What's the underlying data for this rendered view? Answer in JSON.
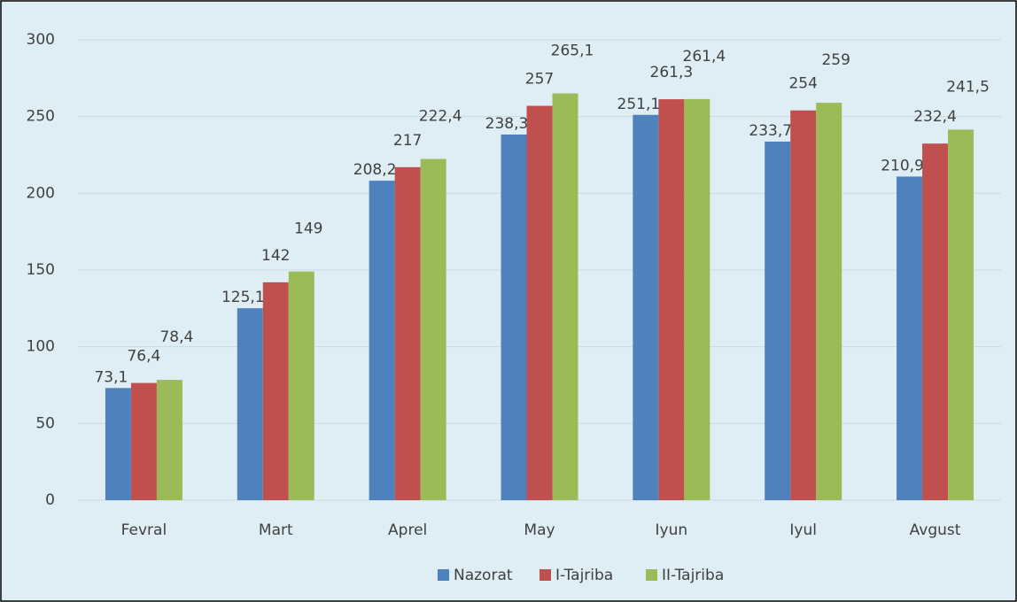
{
  "chart_data": {
    "type": "bar",
    "categories": [
      "Fevral",
      "Mart",
      "Aprel",
      "May",
      "Iyun",
      "Iyul",
      "Avgust"
    ],
    "series": [
      {
        "name": "Nazorat",
        "color": "#4f81bd",
        "values": [
          73.1,
          125.1,
          208.2,
          238.3,
          251.1,
          233.7,
          210.9
        ],
        "value_labels": [
          "73,1",
          "125,1",
          "208,2",
          "238,3",
          "251,1",
          "233,7",
          "210,9"
        ]
      },
      {
        "name": "I-Tajriba",
        "color": "#c0504d",
        "values": [
          76.4,
          142,
          217,
          257,
          261.3,
          254,
          232.4
        ],
        "value_labels": [
          "76,4",
          "142",
          "217",
          "257",
          "261,3",
          "254",
          "232,4"
        ]
      },
      {
        "name": "II-Tajriba",
        "color": "#9bbb59",
        "values": [
          78.4,
          149,
          222.4,
          265.1,
          261.4,
          259,
          241.5
        ],
        "value_labels": [
          "78,4",
          "149",
          "222,4",
          "265,1",
          "261,4",
          "259",
          "241,5"
        ]
      }
    ],
    "ylim": [
      0,
      300
    ],
    "yticks": [
      0,
      50,
      100,
      150,
      200,
      250,
      300
    ],
    "grid": true,
    "legend": "bottom"
  }
}
